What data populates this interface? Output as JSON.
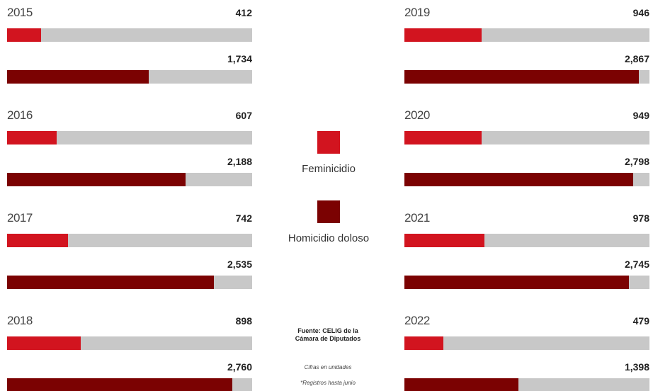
{
  "chart_data": {
    "type": "bar",
    "categories": [
      "2015",
      "2016",
      "2017",
      "2018",
      "2019",
      "2020",
      "2021",
      "2022"
    ],
    "series": [
      {
        "name": "Feminicidio",
        "color": "#d2141f",
        "values": [
          412,
          607,
          742,
          898,
          946,
          949,
          978,
          479
        ],
        "value_labels": [
          "412",
          "607",
          "742",
          "898",
          "946",
          "949",
          "978",
          "479"
        ]
      },
      {
        "name": "Homicidio doloso",
        "color": "#7b0202",
        "values": [
          1734,
          2188,
          2535,
          2760,
          2867,
          2798,
          2745,
          1398
        ],
        "value_labels": [
          "1,734",
          "2,188",
          "2,535",
          "2,760",
          "2,867",
          "2,798",
          "2,745",
          "1,398"
        ]
      }
    ],
    "xlim": [
      0,
      3000
    ],
    "source": "Fuente: CELIG de la Cámara de Diputados",
    "notes": [
      "Cifras en unidades",
      "*Registros hasta junio"
    ]
  }
}
